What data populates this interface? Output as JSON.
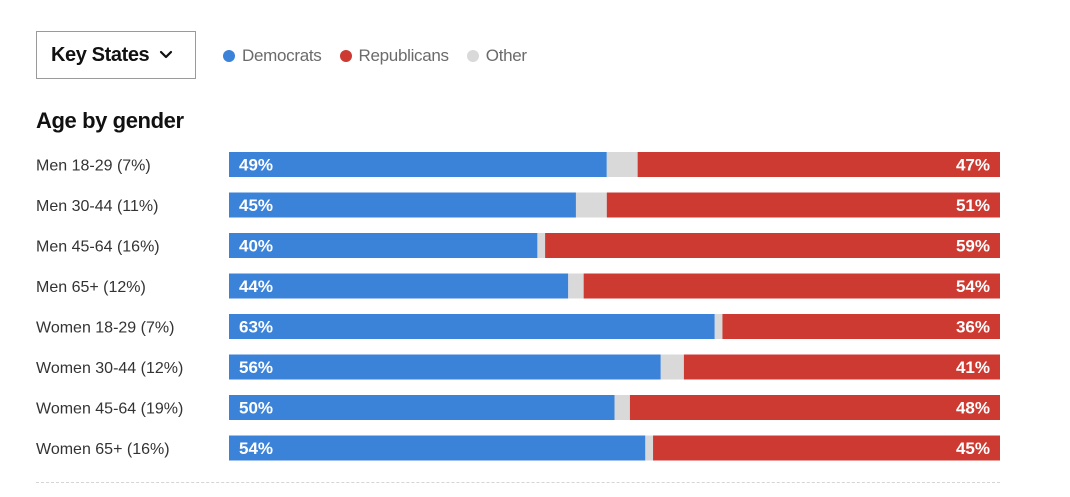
{
  "controls": {
    "dropdown": {
      "selected": "Key States"
    }
  },
  "legend": [
    {
      "label": "Democrats",
      "color": "#3b82d9"
    },
    {
      "label": "Republicans",
      "color": "#cc3a31"
    },
    {
      "label": "Other",
      "color": "#d9d9d9"
    }
  ],
  "colors": {
    "dem": "#3b82d9",
    "rep": "#cc3a31",
    "other": "#d9d9d9"
  },
  "chart_data": {
    "type": "bar",
    "title": "Age by gender",
    "orientation": "horizontal",
    "stacked": true,
    "normalized_to_100": true,
    "categories": [
      "Men 18-29 (7%)",
      "Men 30-44 (11%)",
      "Men 45-64 (16%)",
      "Men 65+ (12%)",
      "Women 18-29 (7%)",
      "Women 30-44 (12%)",
      "Women 45-64 (19%)",
      "Women 65+ (16%)"
    ],
    "series": [
      {
        "name": "Democrats",
        "values": [
          49,
          45,
          40,
          44,
          63,
          56,
          50,
          54
        ],
        "label_suffix": "%"
      },
      {
        "name": "Other",
        "values": [
          4,
          4,
          1,
          2,
          1,
          3,
          2,
          1
        ]
      },
      {
        "name": "Republicans",
        "values": [
          47,
          51,
          59,
          54,
          36,
          41,
          48,
          45
        ],
        "label_suffix": "%"
      }
    ],
    "legend_position": "top"
  }
}
